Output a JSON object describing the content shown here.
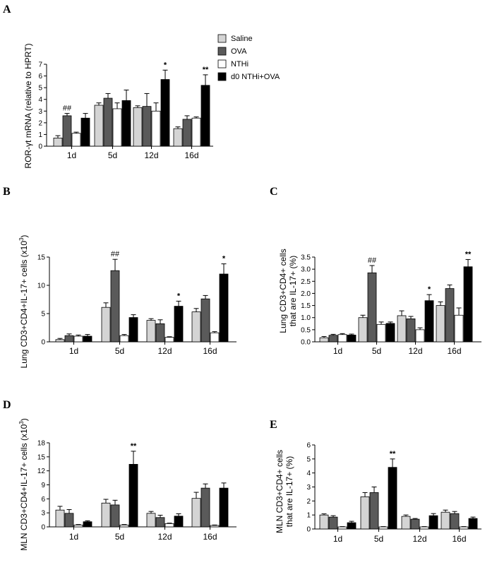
{
  "colors": {
    "saline": "#d4d4d4",
    "ova": "#5a5a5a",
    "nthi": "#ffffff",
    "d0": "#000000",
    "stroke": "#000000"
  },
  "chart_data": [
    {
      "panel": "A",
      "type": "bar",
      "ylabel": "ROR-γt mRNA (relative to HPRT)",
      "ylim": [
        0,
        7
      ],
      "yticks": [
        "0",
        "1",
        "2",
        "3",
        "4",
        "5",
        "6",
        "7"
      ],
      "categories": [
        "1d",
        "5d",
        "12d",
        "16d"
      ],
      "legend": [
        "Saline",
        "OVA",
        "NTHi",
        "d0 NTHi+OVA"
      ],
      "series": [
        {
          "name": "Saline",
          "values": [
            0.7,
            3.5,
            3.3,
            1.5
          ],
          "errors": [
            0.2,
            0.2,
            0.15,
            0.15
          ]
        },
        {
          "name": "OVA",
          "values": [
            2.6,
            4.1,
            3.4,
            2.3
          ],
          "errors": [
            0.2,
            0.4,
            1.1,
            0.3
          ]
        },
        {
          "name": "NTHi",
          "values": [
            1.1,
            3.2,
            3.0,
            2.4
          ],
          "errors": [
            0.1,
            0.5,
            0.7,
            0.1
          ]
        },
        {
          "name": "d0 NTHi+OVA",
          "values": [
            2.4,
            3.9,
            5.7,
            5.2
          ],
          "errors": [
            0.4,
            0.9,
            0.8,
            0.9
          ]
        }
      ],
      "annotations": [
        {
          "text": "##",
          "category": 0,
          "series": 1
        },
        {
          "text": "*",
          "category": 2,
          "series": 3
        },
        {
          "text": "**",
          "category": 3,
          "series": 3
        }
      ]
    },
    {
      "panel": "B",
      "type": "bar",
      "ylabel": "Lung  CD3+CD4+IL-17+ cells (x10",
      "ylabel_sup": "3",
      "ylabel_end": ")",
      "ylim": [
        0,
        15
      ],
      "yticks": [
        "0",
        "5",
        "10",
        "15"
      ],
      "categories": [
        "1d",
        "5d",
        "12d",
        "16d"
      ],
      "series": [
        {
          "name": "Saline",
          "values": [
            0.4,
            6.1,
            3.8,
            5.3
          ],
          "errors": [
            0.2,
            0.8,
            0.3,
            0.6
          ]
        },
        {
          "name": "OVA",
          "values": [
            1.1,
            12.6,
            3.2,
            7.6
          ],
          "errors": [
            0.3,
            2.0,
            0.7,
            0.6
          ]
        },
        {
          "name": "NTHi",
          "values": [
            1.0,
            1.1,
            0.8,
            1.6
          ],
          "errors": [
            0.2,
            0.2,
            0.1,
            0.2
          ]
        },
        {
          "name": "d0 NTHi+OVA",
          "values": [
            1.0,
            4.3,
            6.3,
            12.0
          ],
          "errors": [
            0.3,
            0.5,
            0.9,
            1.8
          ]
        }
      ],
      "annotations": [
        {
          "text": "##",
          "category": 1,
          "series": 1
        },
        {
          "text": "*",
          "category": 2,
          "series": 3
        },
        {
          "text": "*",
          "category": 3,
          "series": 3
        }
      ]
    },
    {
      "panel": "C",
      "type": "bar",
      "ylabel_line1": "Lung  CD3+CD4+ cells",
      "ylabel_line2": "that are IL-17+ (%)",
      "ylim": [
        0,
        3.5
      ],
      "yticks": [
        "0.0",
        "0.5",
        "1.0",
        "1.5",
        "2.0",
        "2.5",
        "3.0",
        "3.5"
      ],
      "categories": [
        "1d",
        "5d",
        "12d",
        "16d"
      ],
      "series": [
        {
          "name": "Saline",
          "values": [
            0.17,
            1.0,
            1.08,
            1.5
          ],
          "errors": [
            0.05,
            0.1,
            0.2,
            0.15
          ]
        },
        {
          "name": "OVA",
          "values": [
            0.27,
            2.85,
            0.95,
            2.2
          ],
          "errors": [
            0.04,
            0.3,
            0.1,
            0.15
          ]
        },
        {
          "name": "NTHi",
          "values": [
            0.3,
            0.72,
            0.5,
            1.1
          ],
          "errors": [
            0.04,
            0.1,
            0.08,
            0.3
          ]
        },
        {
          "name": "d0 NTHi+OVA",
          "values": [
            0.28,
            0.76,
            1.7,
            3.1
          ],
          "errors": [
            0.04,
            0.06,
            0.25,
            0.3
          ]
        }
      ],
      "annotations": [
        {
          "text": "##",
          "category": 1,
          "series": 1
        },
        {
          "text": "*",
          "category": 2,
          "series": 3
        },
        {
          "text": "**",
          "category": 3,
          "series": 3
        }
      ]
    },
    {
      "panel": "D",
      "type": "bar",
      "ylabel": "MLN CD3+CD4+IL-17+ cells (x10",
      "ylabel_sup": "3",
      "ylabel_end": ")",
      "ylim": [
        0,
        18
      ],
      "yticks": [
        "0",
        "3",
        "6",
        "9",
        "12",
        "15",
        "18"
      ],
      "categories": [
        "1d",
        "5d",
        "12d",
        "16d"
      ],
      "series": [
        {
          "name": "Saline",
          "values": [
            3.6,
            5.1,
            2.9,
            6.1
          ],
          "errors": [
            0.8,
            0.8,
            0.4,
            1.3
          ]
        },
        {
          "name": "OVA",
          "values": [
            2.9,
            4.7,
            2.0,
            8.3
          ],
          "errors": [
            0.8,
            1.0,
            0.5,
            0.9
          ]
        },
        {
          "name": "NTHi",
          "values": [
            0.4,
            0.4,
            0.7,
            0.3
          ],
          "errors": [
            0.1,
            0.1,
            0.1,
            0.1
          ]
        },
        {
          "name": "d0 NTHi+OVA",
          "values": [
            1.1,
            13.4,
            2.3,
            8.3
          ],
          "errors": [
            0.2,
            2.8,
            0.5,
            1.1
          ]
        }
      ],
      "annotations": [
        {
          "text": "**",
          "category": 1,
          "series": 3
        }
      ]
    },
    {
      "panel": "E",
      "type": "bar",
      "ylabel_line1": "MLN CD3+CD4+ cells",
      "ylabel_line2": "that are IL-17+ (%)",
      "ylim": [
        0,
        6
      ],
      "yticks": [
        "0",
        "1",
        "2",
        "3",
        "4",
        "5",
        "6"
      ],
      "categories": [
        "1d",
        "5d",
        "12d",
        "16d"
      ],
      "series": [
        {
          "name": "Saline",
          "values": [
            1.0,
            2.3,
            0.9,
            1.2
          ],
          "errors": [
            0.08,
            0.3,
            0.1,
            0.15
          ]
        },
        {
          "name": "OVA",
          "values": [
            0.85,
            2.6,
            0.7,
            1.1
          ],
          "errors": [
            0.1,
            0.4,
            0.05,
            0.15
          ]
        },
        {
          "name": "NTHi",
          "values": [
            0.15,
            0.15,
            0.15,
            0.15
          ],
          "errors": [
            0.02,
            0.02,
            0.02,
            0.02
          ]
        },
        {
          "name": "d0 NTHi+OVA",
          "values": [
            0.45,
            4.4,
            0.95,
            0.75
          ],
          "errors": [
            0.1,
            0.6,
            0.15,
            0.1
          ]
        }
      ],
      "annotations": [
        {
          "text": "**",
          "category": 1,
          "series": 3
        }
      ]
    }
  ]
}
